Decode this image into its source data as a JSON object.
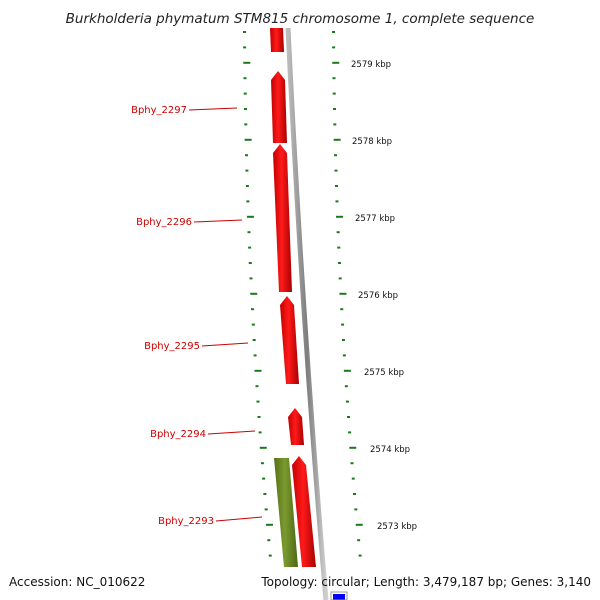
{
  "title": "Burkholderia phymatum STM815 chromosome 1, complete sequence",
  "footer": {
    "accession": "Accession: NC_010622",
    "summary": "Topology: circular; Length: 3,479,187 bp; Genes: 3,140"
  },
  "colors": {
    "forward_gene": "#ff0000",
    "reverse_gene": "#6b8e23",
    "gene_label": "#cc0000",
    "tick": "#1a7a1a",
    "backbone": "#8c8c8c",
    "marker": "#0000ff"
  },
  "scale_labels": [
    "2579 kbp",
    "2578 kbp",
    "2577 kbp",
    "2576 kbp",
    "2575 kbp",
    "2574 kbp",
    "2573 kbp"
  ],
  "genes": [
    {
      "name": "Bphy_2297",
      "strand": "forward"
    },
    {
      "name": "Bphy_2296",
      "strand": "forward"
    },
    {
      "name": "Bphy_2295",
      "strand": "forward"
    },
    {
      "name": "Bphy_2294",
      "strand": "forward"
    },
    {
      "name": "Bphy_2293",
      "strand": "forward"
    },
    {
      "name": "",
      "strand": "reverse"
    }
  ]
}
